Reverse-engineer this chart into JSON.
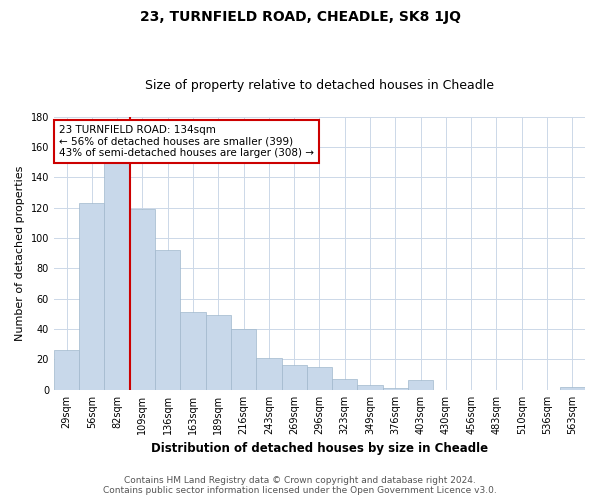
{
  "title": "23, TURNFIELD ROAD, CHEADLE, SK8 1JQ",
  "subtitle": "Size of property relative to detached houses in Cheadle",
  "xlabel": "Distribution of detached houses by size in Cheadle",
  "ylabel": "Number of detached properties",
  "categories": [
    "29sqm",
    "56sqm",
    "82sqm",
    "109sqm",
    "136sqm",
    "163sqm",
    "189sqm",
    "216sqm",
    "243sqm",
    "269sqm",
    "296sqm",
    "323sqm",
    "349sqm",
    "376sqm",
    "403sqm",
    "430sqm",
    "456sqm",
    "483sqm",
    "510sqm",
    "536sqm",
    "563sqm"
  ],
  "values": [
    26,
    123,
    150,
    119,
    92,
    51,
    49,
    40,
    21,
    16,
    15,
    7,
    3,
    1,
    6,
    0,
    0,
    0,
    0,
    0,
    2
  ],
  "bar_color": "#c8d8ea",
  "bar_edge_color": "#a0b8cc",
  "vline_color": "#cc0000",
  "vline_x": 2.5,
  "annotation_text": "23 TURNFIELD ROAD: 134sqm\n← 56% of detached houses are smaller (399)\n43% of semi-detached houses are larger (308) →",
  "annotation_box_edge_color": "#cc0000",
  "ylim": [
    0,
    180
  ],
  "yticks": [
    0,
    20,
    40,
    60,
    80,
    100,
    120,
    140,
    160,
    180
  ],
  "footnote1": "Contains HM Land Registry data © Crown copyright and database right 2024.",
  "footnote2": "Contains public sector information licensed under the Open Government Licence v3.0.",
  "bg_color": "#ffffff",
  "grid_color": "#ccd8e8",
  "title_fontsize": 10,
  "subtitle_fontsize": 9,
  "xlabel_fontsize": 8.5,
  "ylabel_fontsize": 8,
  "tick_fontsize": 7,
  "annotation_fontsize": 7.5,
  "footnote_fontsize": 6.5
}
